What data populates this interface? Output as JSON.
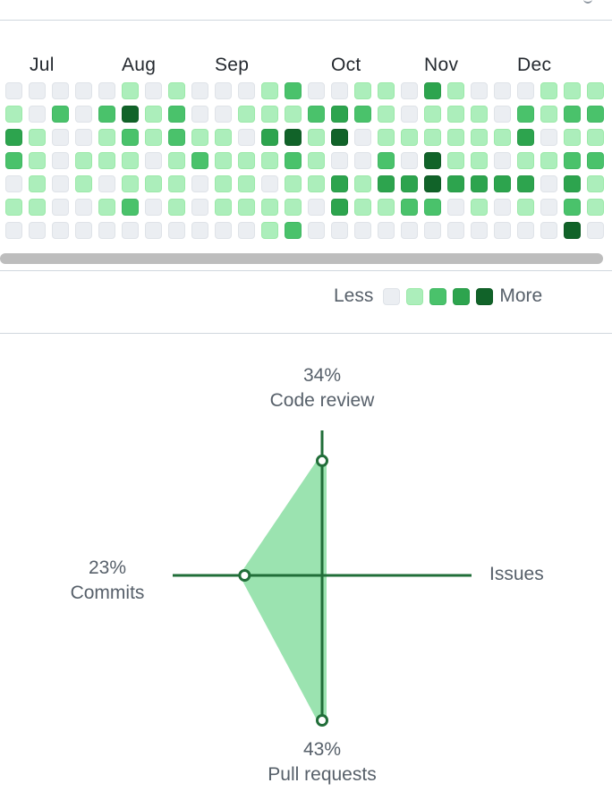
{
  "months": [
    "Jul",
    "Aug",
    "Sep",
    "Oct",
    "Nov",
    "Dec"
  ],
  "legend": {
    "less": "Less",
    "more": "More",
    "colors": [
      "#ebeef2",
      "#aceebb",
      "#4ac26b",
      "#2da44e",
      "#116329"
    ]
  },
  "contributions": [
    [
      0,
      0,
      0,
      0,
      0,
      1,
      0,
      1,
      0,
      0,
      0,
      1,
      2,
      0,
      0,
      1,
      1,
      0,
      3,
      1,
      0,
      0,
      0,
      1,
      1,
      1
    ],
    [
      1,
      0,
      2,
      0,
      2,
      4,
      1,
      2,
      0,
      0,
      1,
      1,
      1,
      2,
      3,
      2,
      1,
      0,
      1,
      1,
      1,
      0,
      2,
      1,
      2,
      2
    ],
    [
      3,
      1,
      0,
      0,
      1,
      2,
      1,
      2,
      1,
      1,
      0,
      3,
      4,
      1,
      4,
      0,
      1,
      1,
      1,
      1,
      1,
      1,
      3,
      0,
      1,
      1
    ],
    [
      2,
      1,
      0,
      1,
      1,
      1,
      0,
      1,
      2,
      1,
      1,
      1,
      2,
      1,
      0,
      0,
      2,
      0,
      4,
      1,
      1,
      0,
      1,
      1,
      2,
      2
    ],
    [
      0,
      1,
      0,
      1,
      0,
      1,
      1,
      1,
      0,
      1,
      1,
      0,
      1,
      1,
      3,
      1,
      3,
      3,
      4,
      3,
      3,
      3,
      3,
      0,
      3,
      1
    ],
    [
      1,
      1,
      0,
      0,
      1,
      2,
      0,
      1,
      0,
      1,
      1,
      1,
      1,
      0,
      3,
      1,
      1,
      2,
      2,
      0,
      1,
      0,
      1,
      0,
      2,
      1
    ],
    [
      0,
      0,
      0,
      0,
      0,
      0,
      0,
      0,
      0,
      0,
      0,
      1,
      2,
      0,
      0,
      0,
      0,
      0,
      0,
      0,
      0,
      0,
      0,
      0,
      4,
      0
    ]
  ],
  "activity_overview": {
    "code_review": {
      "percent": "34%",
      "label": "Code review",
      "value": 34
    },
    "commits": {
      "percent": "23%",
      "label": "Commits",
      "value": 23
    },
    "issues": {
      "percent": "",
      "label": "Issues",
      "value": 0
    },
    "pull_requests": {
      "percent": "43%",
      "label": "Pull requests",
      "value": 43
    },
    "colors": {
      "axis": "#216e39",
      "fill": "#9be3b0"
    }
  }
}
